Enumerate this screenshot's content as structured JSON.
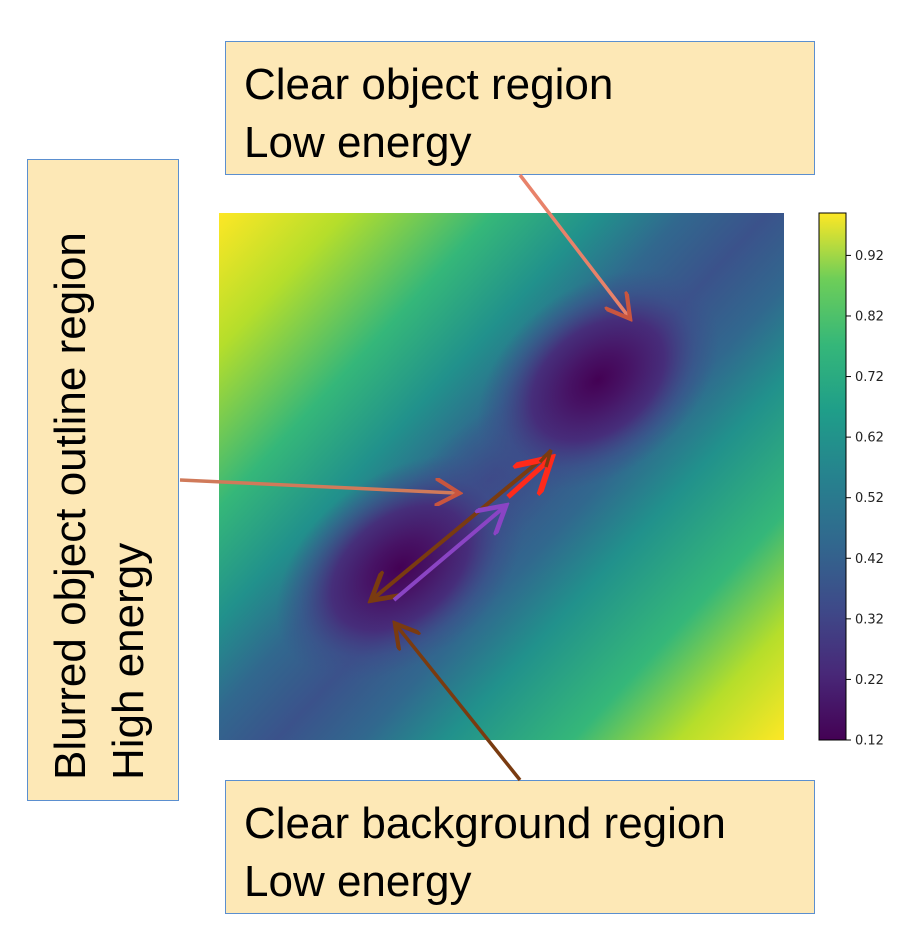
{
  "annotations": {
    "top": {
      "line1": "Clear object region",
      "line2": "Low energy"
    },
    "left": {
      "line1": "Blurred object outline region",
      "line2": "High energy"
    },
    "bottom": {
      "line1": "Clear background region",
      "line2": "Low energy"
    }
  },
  "colorbar": {
    "ticks": [
      "0.92",
      "0.82",
      "0.72",
      "0.62",
      "0.52",
      "0.42",
      "0.32",
      "0.22",
      "0.12"
    ],
    "range": [
      0.12,
      0.99
    ],
    "colormap": "viridis"
  },
  "energy_map": {
    "minima": [
      "upper-right basin (object)",
      "lower-left basin (background)"
    ],
    "colors": {
      "low": "#440154",
      "mid": "#21918c",
      "high": "#fde725"
    }
  },
  "arrow_colors": {
    "callout_top": "#e8826a",
    "callout_left": "#d07a5a",
    "callout_bottom": "#7a3b10",
    "double_arrow": "#7a3b10",
    "purple_arrow": "#8a44c4",
    "red_arrow": "#ff2a1a"
  }
}
